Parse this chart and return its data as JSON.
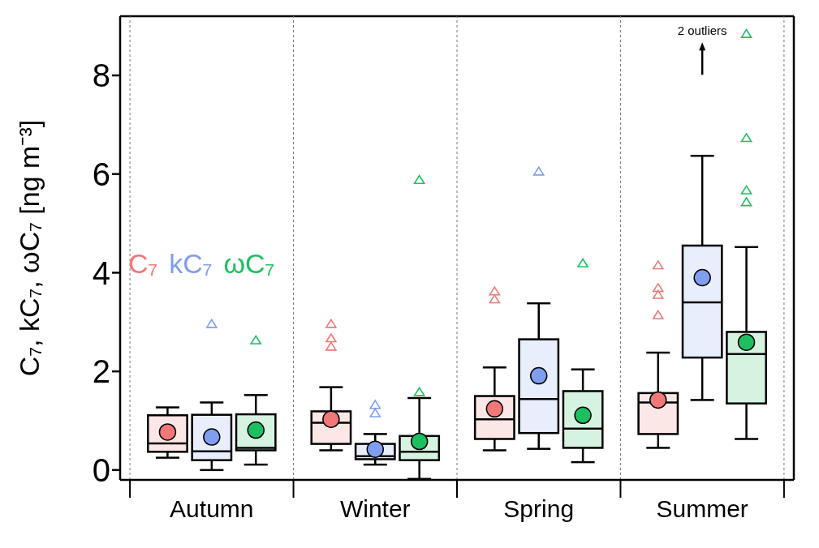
{
  "chart_data": {
    "type": "box",
    "ylabel": "C₇, kC₇, ωC₇ [ng m⁻³]",
    "categories": [
      "Autumn",
      "Winter",
      "Spring",
      "Summer"
    ],
    "series": [
      {
        "name": "C₇",
        "color": "#f07878",
        "boxes": [
          {
            "low": 0.25,
            "q1": 0.37,
            "median": 0.54,
            "q3": 1.11,
            "high": 1.27,
            "mean": 0.77
          },
          {
            "low": 0.4,
            "q1": 0.53,
            "median": 0.96,
            "q3": 1.19,
            "high": 1.68,
            "mean": 1.03,
            "outliers": [
              2.95,
              2.66,
              2.49
            ]
          },
          {
            "low": 0.4,
            "q1": 0.63,
            "median": 1.03,
            "q3": 1.5,
            "high": 2.08,
            "mean": 1.24,
            "outliers": [
              3.61,
              3.45
            ]
          },
          {
            "low": 0.45,
            "q1": 0.73,
            "median": 1.37,
            "q3": 1.56,
            "high": 2.38,
            "mean": 1.42,
            "outliers": [
              4.14,
              3.68,
              3.54,
              3.13
            ]
          }
        ]
      },
      {
        "name": "kC₇",
        "color": "#7f9ef0",
        "boxes": [
          {
            "low": 0.0,
            "q1": 0.2,
            "median": 0.38,
            "q3": 1.12,
            "high": 1.37,
            "mean": 0.67,
            "outliers": [
              2.95
            ]
          },
          {
            "low": 0.11,
            "q1": 0.22,
            "median": 0.28,
            "q3": 0.53,
            "high": 0.73,
            "mean": 0.42,
            "outliers": [
              1.31,
              1.14
            ]
          },
          {
            "low": 0.43,
            "q1": 0.75,
            "median": 1.44,
            "q3": 2.65,
            "high": 3.38,
            "mean": 1.91,
            "outliers": [
              6.04
            ]
          },
          {
            "low": 1.42,
            "q1": 2.28,
            "median": 3.4,
            "q3": 4.55,
            "high": 6.37,
            "mean": 3.9
          }
        ]
      },
      {
        "name": "ωC₇",
        "color": "#1ebf60",
        "boxes": [
          {
            "low": 0.11,
            "q1": 0.4,
            "median": 0.45,
            "q3": 1.13,
            "high": 1.52,
            "mean": 0.81,
            "outliers": [
              2.62
            ]
          },
          {
            "low": -0.18,
            "q1": 0.2,
            "median": 0.37,
            "q3": 0.69,
            "high": 1.46,
            "mean": 0.58,
            "outliers": [
              1.57,
              5.87
            ]
          },
          {
            "low": 0.16,
            "q1": 0.45,
            "median": 0.84,
            "q3": 1.6,
            "high": 2.04,
            "mean": 1.11,
            "outliers": [
              4.18
            ]
          },
          {
            "low": 0.63,
            "q1": 1.35,
            "median": 2.35,
            "q3": 2.8,
            "high": 4.52,
            "mean": 2.59,
            "outliers": [
              8.83,
              6.72,
              5.66,
              5.42
            ]
          }
        ]
      }
    ],
    "ylim": [
      -0.2,
      9.2
    ],
    "yticks": [
      0,
      2,
      4,
      6,
      8
    ],
    "grid": "x",
    "legend": "left",
    "marker": "circle",
    "annotations": [
      "2 outliers"
    ]
  }
}
